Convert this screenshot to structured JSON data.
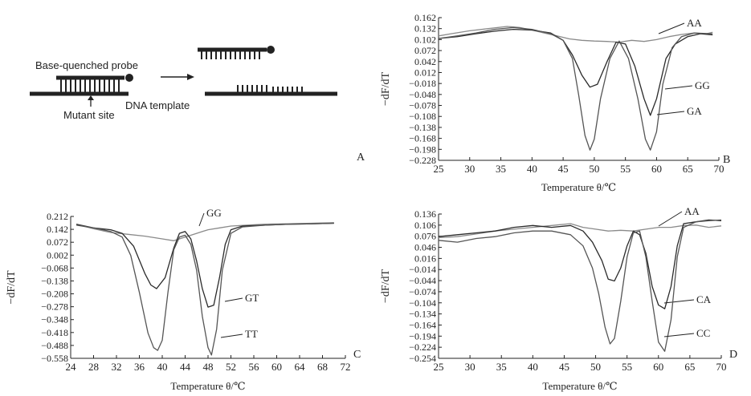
{
  "panel_a": {
    "probe_label": "Base-quenched  probe",
    "template_label": "DNA template",
    "mutant_label": "Mutant site",
    "panel_letter": "A"
  },
  "chart_data": [
    {
      "type": "line",
      "panel": "B",
      "ylabel": "−dF/dT",
      "xlabel": "Temperature θ/℃",
      "xlim": [
        25,
        70
      ],
      "ylim": [
        -0.228,
        0.162
      ],
      "xticks": [
        25,
        30,
        35,
        40,
        45,
        50,
        55,
        60,
        65,
        70
      ],
      "yticks": [
        0.162,
        0.132,
        0.102,
        0.072,
        0.042,
        0.012,
        -0.018,
        -0.048,
        -0.078,
        -0.108,
        -0.138,
        -0.168,
        -0.198,
        -0.228
      ],
      "series": [
        {
          "name": "AA",
          "color": "#8a8a8a",
          "x": [
            25,
            27,
            30,
            33,
            36,
            38,
            40,
            42,
            44,
            46,
            48,
            50,
            52,
            54,
            56,
            58,
            60,
            62,
            64,
            66,
            68,
            69
          ],
          "y": [
            0.112,
            0.118,
            0.126,
            0.132,
            0.138,
            0.135,
            0.128,
            0.12,
            0.112,
            0.104,
            0.1,
            0.098,
            0.097,
            0.095,
            0.1,
            0.097,
            0.102,
            0.11,
            0.116,
            0.12,
            0.118,
            0.122
          ]
        },
        {
          "name": "GG",
          "color": "#2a2a2a",
          "x": [
            25,
            28,
            31,
            34,
            37,
            40,
            43,
            45,
            46.5,
            48,
            49.3,
            50.5,
            52,
            53.5,
            55,
            56.5,
            58,
            59,
            60,
            61.5,
            63,
            65,
            67,
            69
          ],
          "y": [
            0.105,
            0.11,
            0.118,
            0.125,
            0.13,
            0.128,
            0.12,
            0.1,
            0.06,
            0.005,
            -0.028,
            -0.02,
            0.04,
            0.095,
            0.09,
            0.03,
            -0.06,
            -0.105,
            -0.06,
            0.05,
            0.09,
            0.11,
            0.118,
            0.115
          ]
        },
        {
          "name": "GA",
          "color": "#555555",
          "x": [
            25,
            28,
            31,
            34,
            37,
            40,
            43,
            45,
            46.5,
            47.5,
            48.5,
            49.3,
            50,
            51,
            52.5,
            54,
            55.5,
            57,
            58.2,
            59,
            60,
            61,
            62.5,
            64,
            66,
            69
          ],
          "y": [
            0.105,
            0.112,
            0.12,
            0.13,
            0.135,
            0.13,
            0.118,
            0.1,
            0.05,
            -0.05,
            -0.16,
            -0.2,
            -0.17,
            -0.06,
            0.05,
            0.098,
            0.05,
            -0.06,
            -0.17,
            -0.2,
            -0.15,
            -0.02,
            0.08,
            0.11,
            0.12,
            0.118
          ]
        }
      ]
    },
    {
      "type": "line",
      "panel": "C",
      "ylabel": "−dF/dT",
      "xlabel": "Temperature θ/℃",
      "xlim": [
        24,
        72
      ],
      "ylim": [
        -0.558,
        0.212
      ],
      "xticks": [
        24,
        28,
        32,
        36,
        40,
        44,
        48,
        52,
        56,
        60,
        64,
        68,
        72
      ],
      "yticks": [
        0.212,
        0.142,
        0.072,
        0.002,
        -0.068,
        -0.138,
        -0.208,
        -0.278,
        -0.348,
        -0.418,
        -0.488,
        -0.558
      ],
      "series": [
        {
          "name": "GG",
          "color": "#8a8a8a",
          "x": [
            25,
            28,
            31,
            34,
            37,
            40,
            42,
            44,
            46,
            48,
            50,
            52,
            55,
            58,
            62,
            66,
            70
          ],
          "y": [
            0.17,
            0.145,
            0.125,
            0.115,
            0.105,
            0.09,
            0.08,
            0.1,
            0.12,
            0.14,
            0.15,
            0.16,
            0.165,
            0.17,
            0.172,
            0.175,
            0.178
          ]
        },
        {
          "name": "GT",
          "color": "#2a2a2a",
          "x": [
            25,
            28,
            31,
            33,
            35,
            37,
            38,
            39,
            40.5,
            42,
            43,
            44,
            45,
            46,
            47,
            48,
            49,
            50,
            51,
            52,
            54,
            58,
            62,
            66,
            70
          ],
          "y": [
            0.17,
            0.15,
            0.14,
            0.12,
            0.05,
            -0.1,
            -0.16,
            -0.18,
            -0.12,
            0.04,
            0.12,
            0.13,
            0.09,
            -0.03,
            -0.18,
            -0.28,
            -0.27,
            -0.12,
            0.06,
            0.14,
            0.16,
            0.165,
            0.17,
            0.172,
            0.175
          ]
        },
        {
          "name": "TT",
          "color": "#555555",
          "x": [
            25,
            28,
            31,
            33,
            34.5,
            36,
            37.5,
            38.5,
            39.2,
            40,
            41,
            42,
            43,
            44,
            45,
            46,
            47,
            48,
            48.6,
            49.5,
            50.5,
            52,
            54,
            58,
            62,
            66,
            70
          ],
          "y": [
            0.165,
            0.15,
            0.13,
            0.1,
            0.0,
            -0.2,
            -0.42,
            -0.5,
            -0.515,
            -0.46,
            -0.2,
            0.03,
            0.1,
            0.11,
            0.06,
            -0.08,
            -0.33,
            -0.5,
            -0.54,
            -0.4,
            -0.08,
            0.12,
            0.155,
            0.165,
            0.17,
            0.172,
            0.175
          ]
        }
      ]
    },
    {
      "type": "line",
      "panel": "D",
      "ylabel": "−dF/dT",
      "xlabel": "Temperature θ/℃",
      "xlim": [
        25,
        70
      ],
      "ylim": [
        -0.254,
        0.136
      ],
      "xticks": [
        25,
        30,
        35,
        40,
        45,
        50,
        55,
        60,
        65,
        70
      ],
      "yticks": [
        0.136,
        0.106,
        0.076,
        0.046,
        0.016,
        -0.014,
        -0.044,
        -0.074,
        -0.104,
        -0.134,
        -0.164,
        -0.194,
        -0.224,
        -0.254
      ],
      "series": [
        {
          "name": "AA",
          "color": "#8a8a8a",
          "x": [
            25,
            28,
            31,
            34,
            37,
            40,
            43,
            46,
            48,
            50,
            52,
            54,
            56,
            58,
            60,
            62,
            64,
            66,
            68,
            70
          ],
          "y": [
            0.072,
            0.075,
            0.082,
            0.09,
            0.095,
            0.1,
            0.105,
            0.11,
            0.1,
            0.095,
            0.09,
            0.092,
            0.09,
            0.095,
            0.1,
            0.1,
            0.105,
            0.106,
            0.1,
            0.104
          ]
        },
        {
          "name": "CA",
          "color": "#2a2a2a",
          "x": [
            25,
            28,
            31,
            34,
            37,
            40,
            43,
            46,
            48,
            49.5,
            51,
            52,
            53,
            54,
            55,
            56,
            57,
            58,
            59,
            60,
            61,
            62,
            63,
            64,
            66,
            68,
            70
          ],
          "y": [
            0.075,
            0.08,
            0.085,
            0.09,
            0.1,
            0.105,
            0.1,
            0.105,
            0.09,
            0.06,
            0.01,
            -0.04,
            -0.045,
            -0.01,
            0.05,
            0.09,
            0.08,
            0.03,
            -0.06,
            -0.11,
            -0.12,
            -0.06,
            0.05,
            0.11,
            0.115,
            0.12,
            0.118
          ]
        },
        {
          "name": "CC",
          "color": "#555555",
          "x": [
            25,
            28,
            31,
            34,
            37,
            40,
            43,
            46,
            48,
            49.5,
            50.5,
            51.5,
            52.3,
            53,
            54,
            55,
            56,
            57,
            58,
            59,
            60,
            61,
            62,
            63,
            64,
            66,
            68,
            70
          ],
          "y": [
            0.065,
            0.06,
            0.07,
            0.075,
            0.085,
            0.09,
            0.09,
            0.08,
            0.05,
            -0.01,
            -0.08,
            -0.17,
            -0.215,
            -0.2,
            -0.1,
            0.02,
            0.085,
            0.09,
            0.02,
            -0.1,
            -0.21,
            -0.235,
            -0.15,
            0.02,
            0.1,
            0.115,
            0.118,
            0.12
          ]
        }
      ]
    }
  ]
}
